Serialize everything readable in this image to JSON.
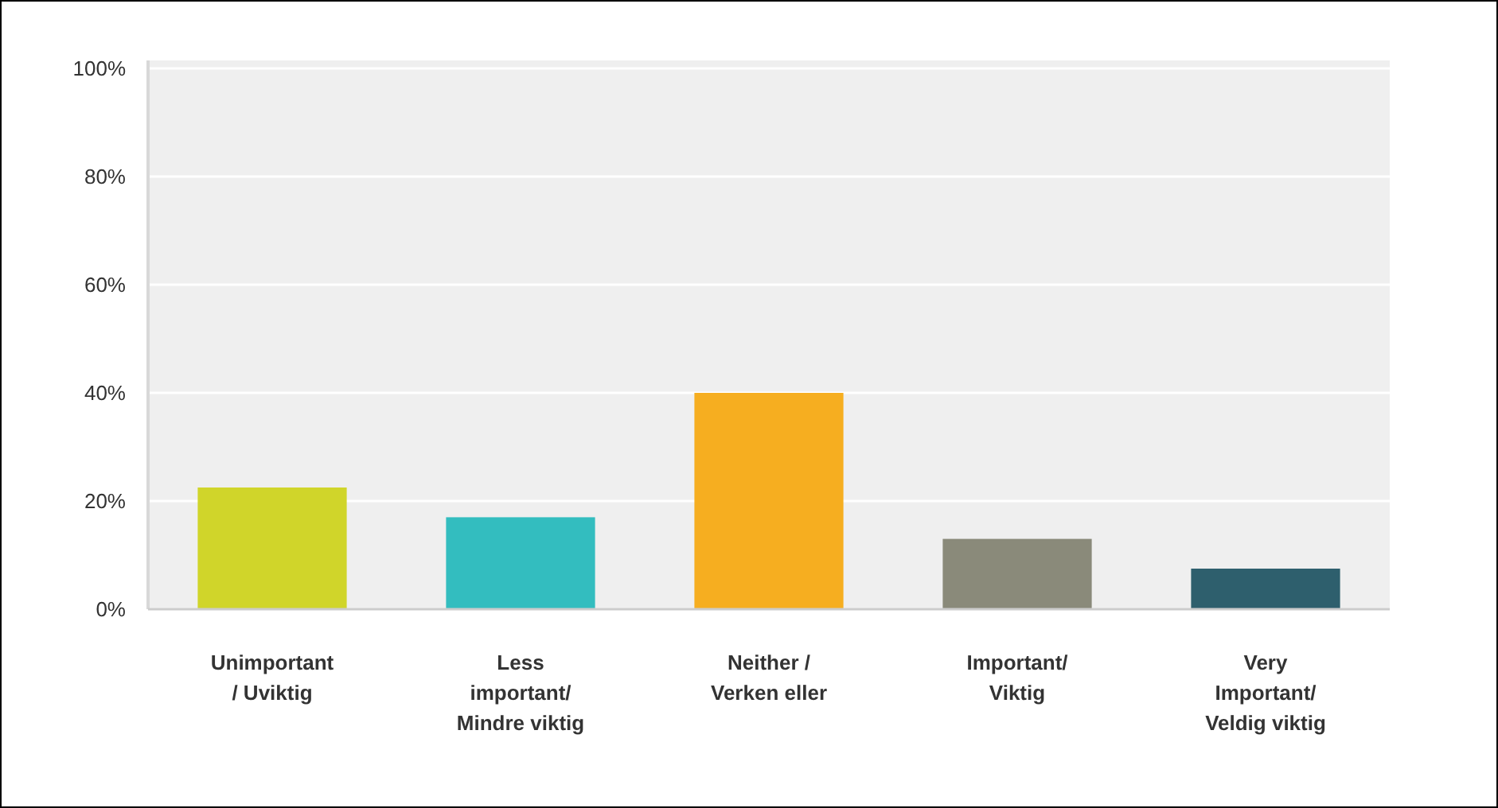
{
  "chart_data": {
    "type": "bar",
    "categories": [
      "Unimportant\n/ Uviktig",
      "Less\nimportant/\nMindre viktig",
      "Neither /\nVerken eller",
      "Important/\nViktig",
      "Very\nImportant/\nVeldig viktig"
    ],
    "values": [
      22.5,
      17,
      40,
      13,
      7.5
    ],
    "colors": [
      "#d0d52a",
      "#33bdbf",
      "#f6ae20",
      "#8a8a7a",
      "#2e5f6d"
    ],
    "ylim": [
      0,
      100
    ],
    "yticks": [
      {
        "value": 0,
        "label": "0%"
      },
      {
        "value": 20,
        "label": "20%"
      },
      {
        "value": 40,
        "label": "40%"
      },
      {
        "value": 60,
        "label": "60%"
      },
      {
        "value": 80,
        "label": "80%"
      },
      {
        "value": 100,
        "label": "100%"
      }
    ],
    "grid": "y"
  }
}
